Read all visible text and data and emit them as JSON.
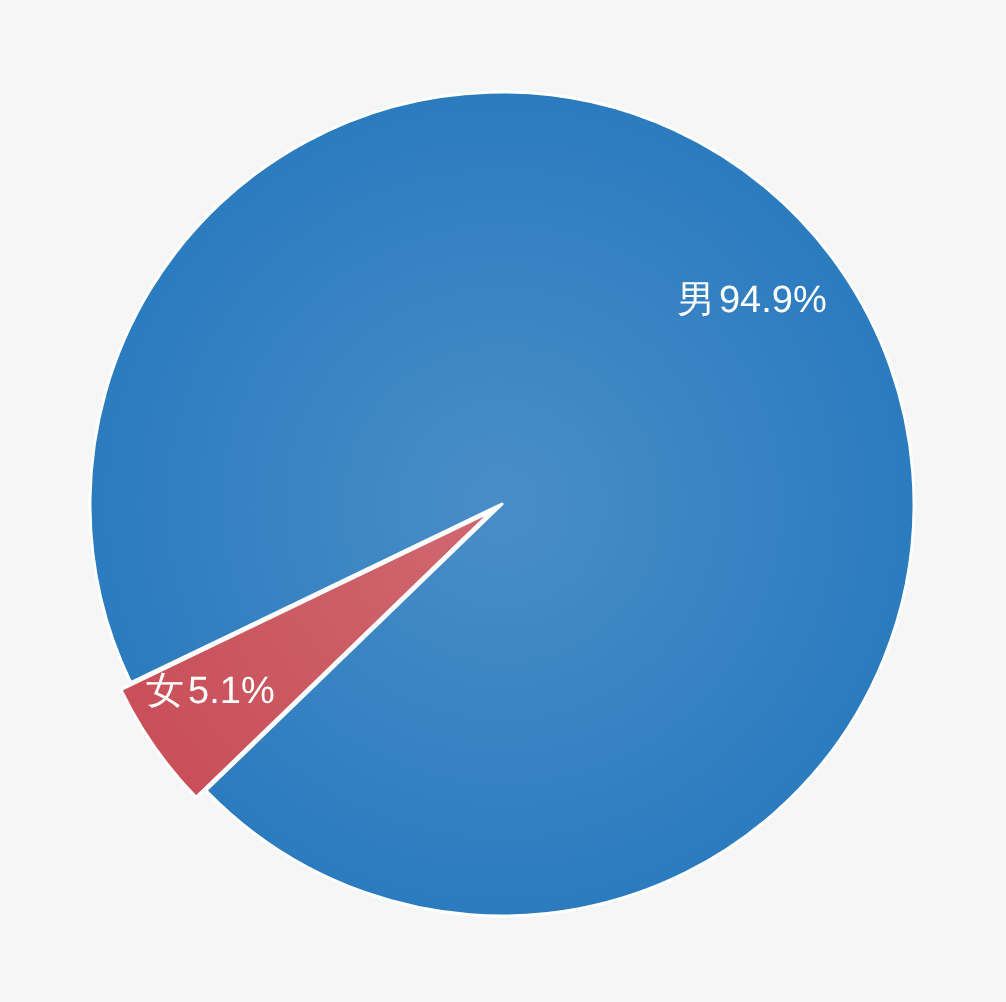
{
  "chart_data": {
    "type": "pie",
    "categories": [
      "男",
      "女"
    ],
    "values": [
      94.9,
      5.1
    ],
    "colors": [
      "#2b7bbf",
      "#c9505a"
    ],
    "value_labels": [
      "94.9%",
      "5.1%"
    ]
  }
}
